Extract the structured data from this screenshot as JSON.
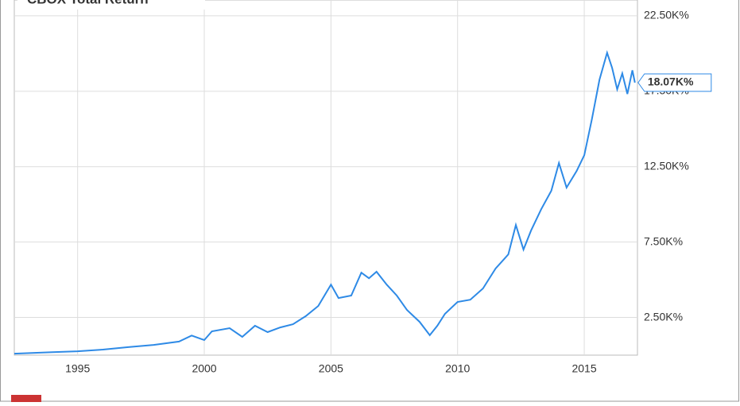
{
  "chart_data": {
    "type": "line",
    "title": "CBOX Total Return",
    "x": [
      1992.5,
      1994,
      1995,
      1996,
      1997,
      1998,
      1999,
      1999.5,
      2000,
      2000.3,
      2001,
      2001.5,
      2002,
      2002.5,
      2003,
      2003.5,
      2004,
      2004.5,
      2005,
      2005.3,
      2005.8,
      2006.2,
      2006.5,
      2006.8,
      2007.2,
      2007.6,
      2008,
      2008.5,
      2008.9,
      2009.2,
      2009.5,
      2010,
      2010.5,
      2011,
      2011.5,
      2012,
      2012.3,
      2012.6,
      2012.9,
      2013.3,
      2013.7,
      2014,
      2014.3,
      2014.7,
      2015,
      2015.3,
      2015.6,
      2015.9,
      2016.1,
      2016.3,
      2016.5,
      2016.7,
      2016.9,
      2017.0
    ],
    "series": [
      {
        "name": "CBOX Total Return",
        "color": "#2e8ae6",
        "values": [
          100,
          200,
          260,
          370,
          530,
          680,
          900,
          1300,
          1000,
          1580,
          1790,
          1210,
          1950,
          1530,
          1840,
          2050,
          2580,
          3260,
          4680,
          3790,
          3950,
          5470,
          5100,
          5530,
          4680,
          3950,
          3000,
          2210,
          1320,
          1950,
          2740,
          3530,
          3680,
          4420,
          5740,
          6680,
          8630,
          7000,
          8260,
          9680,
          10900,
          12740,
          11110,
          12210,
          13260,
          15630,
          18260,
          20050,
          19050,
          17630,
          18680,
          17320,
          18890,
          18070
        ],
        "value_labels": [
          null,
          null,
          null,
          null,
          null,
          null,
          null,
          null,
          null,
          null,
          null,
          null,
          null,
          null,
          null,
          null,
          null,
          null,
          null,
          null,
          null,
          null,
          null,
          null,
          null,
          null,
          null,
          null,
          null,
          null,
          null,
          null,
          null,
          null,
          null,
          null,
          null,
          null,
          null,
          null,
          null,
          null,
          null,
          null,
          null,
          null,
          null,
          null,
          null,
          null,
          null,
          null,
          null,
          "18.07K%"
        ]
      }
    ],
    "xlim": [
      1992.5,
      2017.1
    ],
    "xticks": [
      1995,
      2000,
      2005,
      2010,
      2015
    ],
    "ylim": [
      0,
      23550
    ],
    "yticks": [
      {
        "value": 2500,
        "label": "2.50K%"
      },
      {
        "value": 7500,
        "label": "7.50K%"
      },
      {
        "value": 12500,
        "label": "12.50K%"
      },
      {
        "value": 17500,
        "label": "17.50K%"
      },
      {
        "value": 22500,
        "label": "22.50K%"
      }
    ],
    "grid": true
  }
}
